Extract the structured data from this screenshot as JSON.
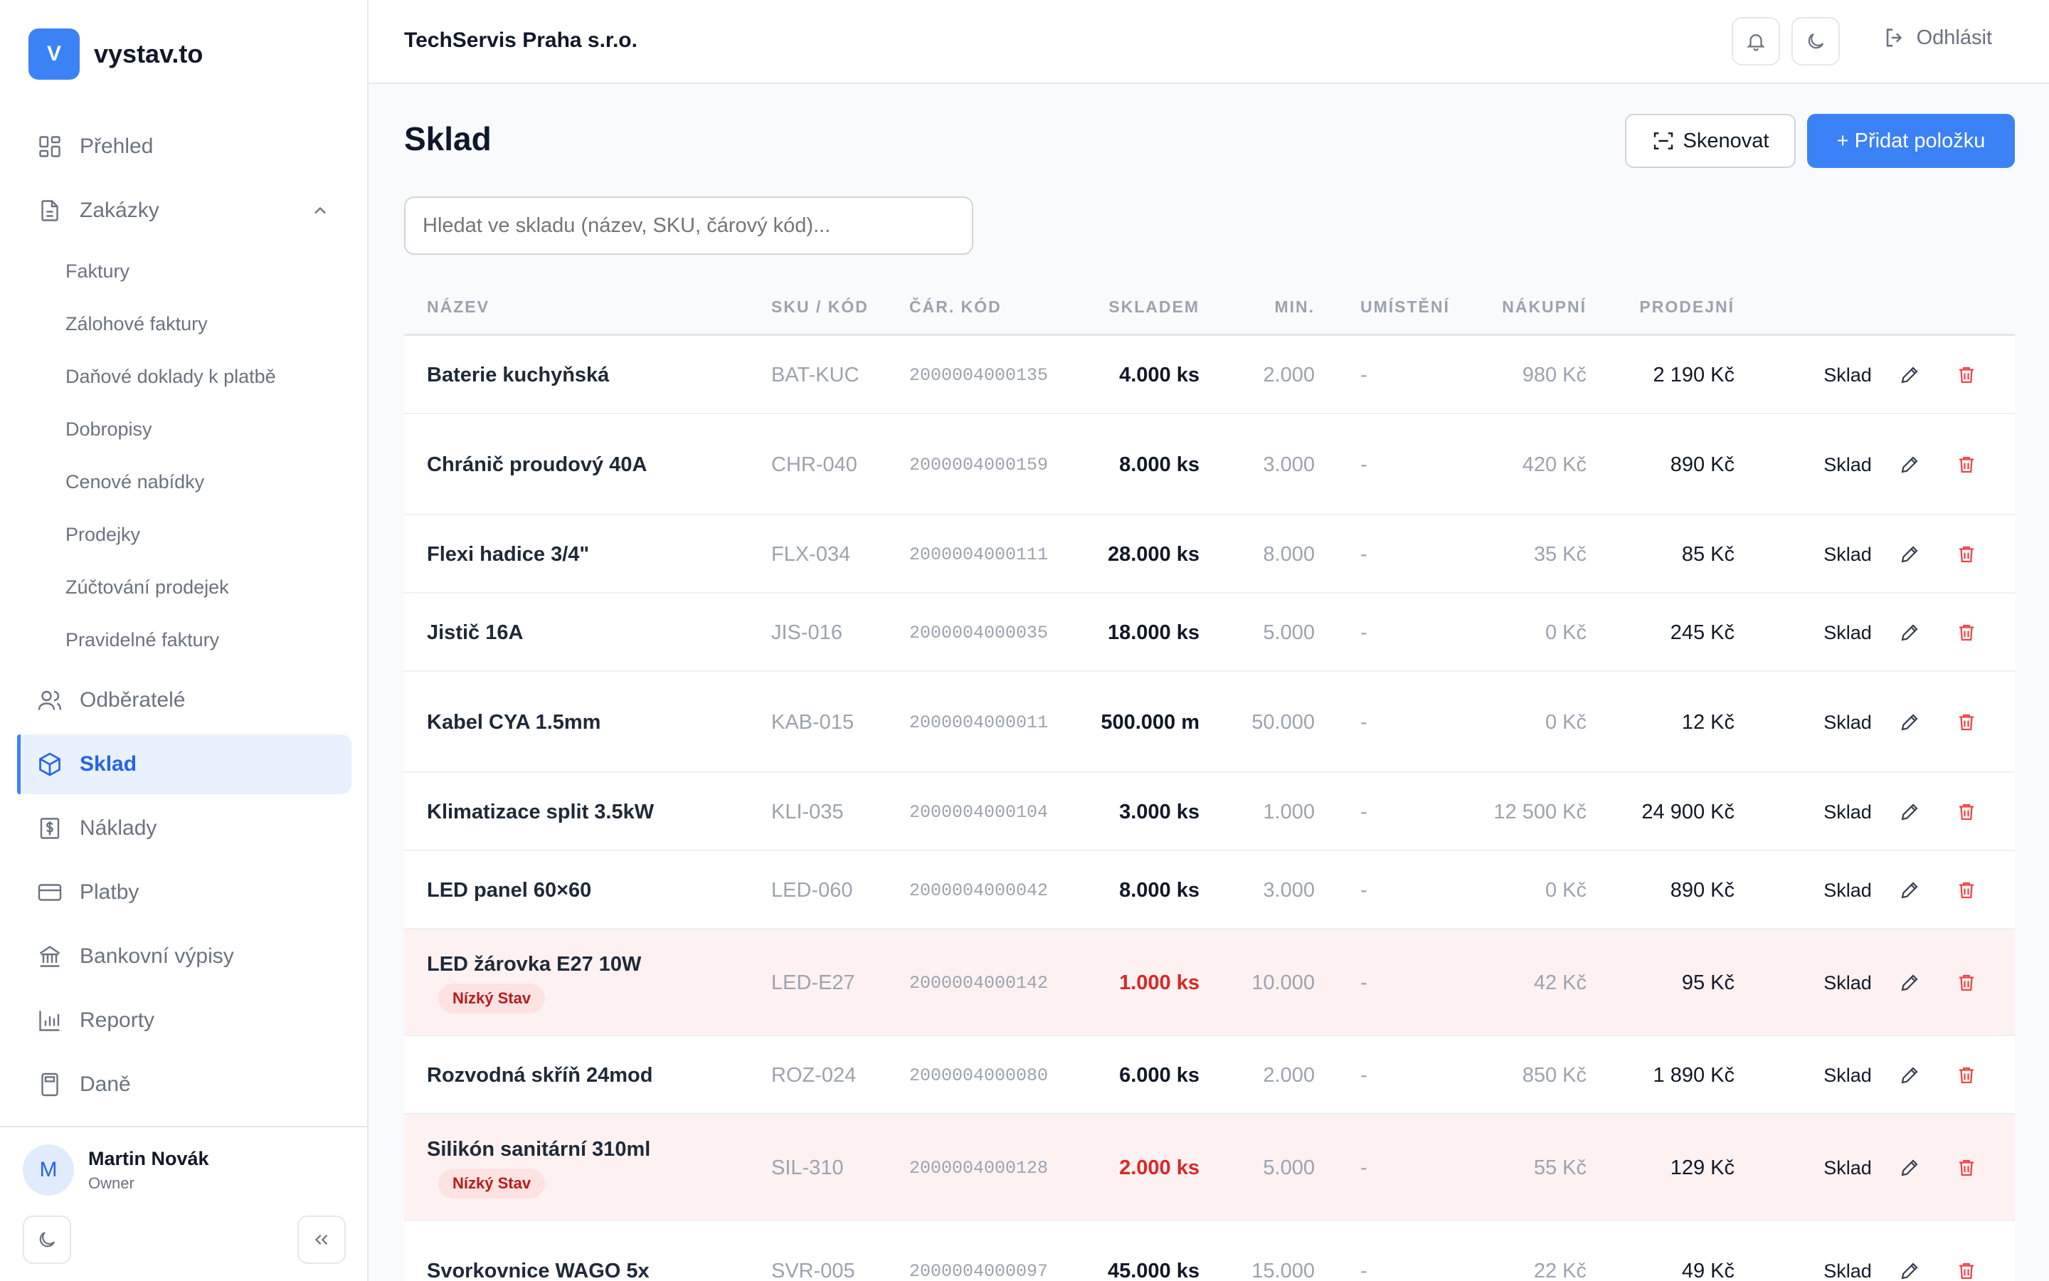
{
  "brand": {
    "logo_letter": "V",
    "name": "vystav.to"
  },
  "nav": {
    "items": [
      {
        "label": "Přehled",
        "icon": "dashboard-icon"
      },
      {
        "label": "Zakázky",
        "icon": "document-icon",
        "expanded": true
      },
      {
        "label": "Odběratelé",
        "icon": "users-icon"
      },
      {
        "label": "Sklad",
        "icon": "box-icon",
        "active": true
      },
      {
        "label": "Náklady",
        "icon": "dollar-receipt-icon"
      },
      {
        "label": "Platby",
        "icon": "credit-card-icon"
      },
      {
        "label": "Bankovní výpisy",
        "icon": "bank-icon"
      },
      {
        "label": "Reporty",
        "icon": "bar-chart-icon"
      },
      {
        "label": "Daně",
        "icon": "calculator-icon"
      }
    ],
    "subitems": [
      "Faktury",
      "Zálohové faktury",
      "Daňové doklady k platbě",
      "Dobropisy",
      "Cenové nabídky",
      "Prodejky",
      "Zúčtování prodejek",
      "Pravidelné faktury"
    ]
  },
  "user": {
    "initial": "M",
    "name": "Martin Novák",
    "role": "Owner"
  },
  "topbar": {
    "company": "TechServis Praha s.r.o.",
    "logout_label": "Odhlásit"
  },
  "page": {
    "title": "Sklad",
    "scan_label": "Skenovat",
    "add_label": "+ Přidat položku",
    "search_placeholder": "Hledat ve skladu (název, SKU, čárový kód)..."
  },
  "table": {
    "headers": {
      "name": "NÁZEV",
      "sku": "SKU / KÓD",
      "barcode": "ČÁR. KÓD",
      "stock": "SKLADEM",
      "min": "MIN.",
      "location": "UMÍSTĚNÍ",
      "purchase": "NÁKUPNÍ",
      "sale": "PRODEJNÍ"
    },
    "low_stock_label": "Nízký Stav",
    "link_label": "Sklad",
    "rows": [
      {
        "name": "Baterie kuchyňská",
        "sku": "BAT-KUC",
        "barcode": "2000004000135",
        "stock": "4.000 ks",
        "min": "2.000",
        "location": "-",
        "purchase": "980 Kč",
        "sale": "2 190 Kč",
        "low": false
      },
      {
        "name": "Chránič proudový 40A",
        "sku": "CHR-040",
        "barcode": "2000004000159",
        "stock": "8.000 ks",
        "min": "3.000",
        "location": "-",
        "purchase": "420 Kč",
        "sale": "890 Kč",
        "low": false
      },
      {
        "name": "Flexi hadice 3/4\"",
        "sku": "FLX-034",
        "barcode": "2000004000111",
        "stock": "28.000 ks",
        "min": "8.000",
        "location": "-",
        "purchase": "35 Kč",
        "sale": "85 Kč",
        "low": false
      },
      {
        "name": "Jistič 16A",
        "sku": "JIS-016",
        "barcode": "2000004000035",
        "stock": "18.000 ks",
        "min": "5.000",
        "location": "-",
        "purchase": "0 Kč",
        "sale": "245 Kč",
        "low": false
      },
      {
        "name": "Kabel CYA 1.5mm",
        "sku": "KAB-015",
        "barcode": "2000004000011",
        "stock": "500.000 m",
        "min": "50.000",
        "location": "-",
        "purchase": "0 Kč",
        "sale": "12 Kč",
        "low": false
      },
      {
        "name": "Klimatizace split 3.5kW",
        "sku": "KLI-035",
        "barcode": "2000004000104",
        "stock": "3.000 ks",
        "min": "1.000",
        "location": "-",
        "purchase": "12 500 Kč",
        "sale": "24 900 Kč",
        "low": false
      },
      {
        "name": "LED panel 60×60",
        "sku": "LED-060",
        "barcode": "2000004000042",
        "stock": "8.000 ks",
        "min": "3.000",
        "location": "-",
        "purchase": "0 Kč",
        "sale": "890 Kč",
        "low": false
      },
      {
        "name": "LED žárovka E27 10W",
        "sku": "LED-E27",
        "barcode": "2000004000142",
        "stock": "1.000 ks",
        "min": "10.000",
        "location": "-",
        "purchase": "42 Kč",
        "sale": "95 Kč",
        "low": true
      },
      {
        "name": "Rozvodná skříň 24mod",
        "sku": "ROZ-024",
        "barcode": "2000004000080",
        "stock": "6.000 ks",
        "min": "2.000",
        "location": "-",
        "purchase": "850 Kč",
        "sale": "1 890 Kč",
        "low": false
      },
      {
        "name": "Silikón sanitární 310ml",
        "sku": "SIL-310",
        "barcode": "2000004000128",
        "stock": "2.000 ks",
        "min": "5.000",
        "location": "-",
        "purchase": "55 Kč",
        "sale": "129 Kč",
        "low": true
      },
      {
        "name": "Svorkovnice WAGO 5x",
        "sku": "SVR-005",
        "barcode": "2000004000097",
        "stock": "45.000 ks",
        "min": "15.000",
        "location": "-",
        "purchase": "22 Kč",
        "sale": "49 Kč",
        "low": false
      }
    ]
  }
}
